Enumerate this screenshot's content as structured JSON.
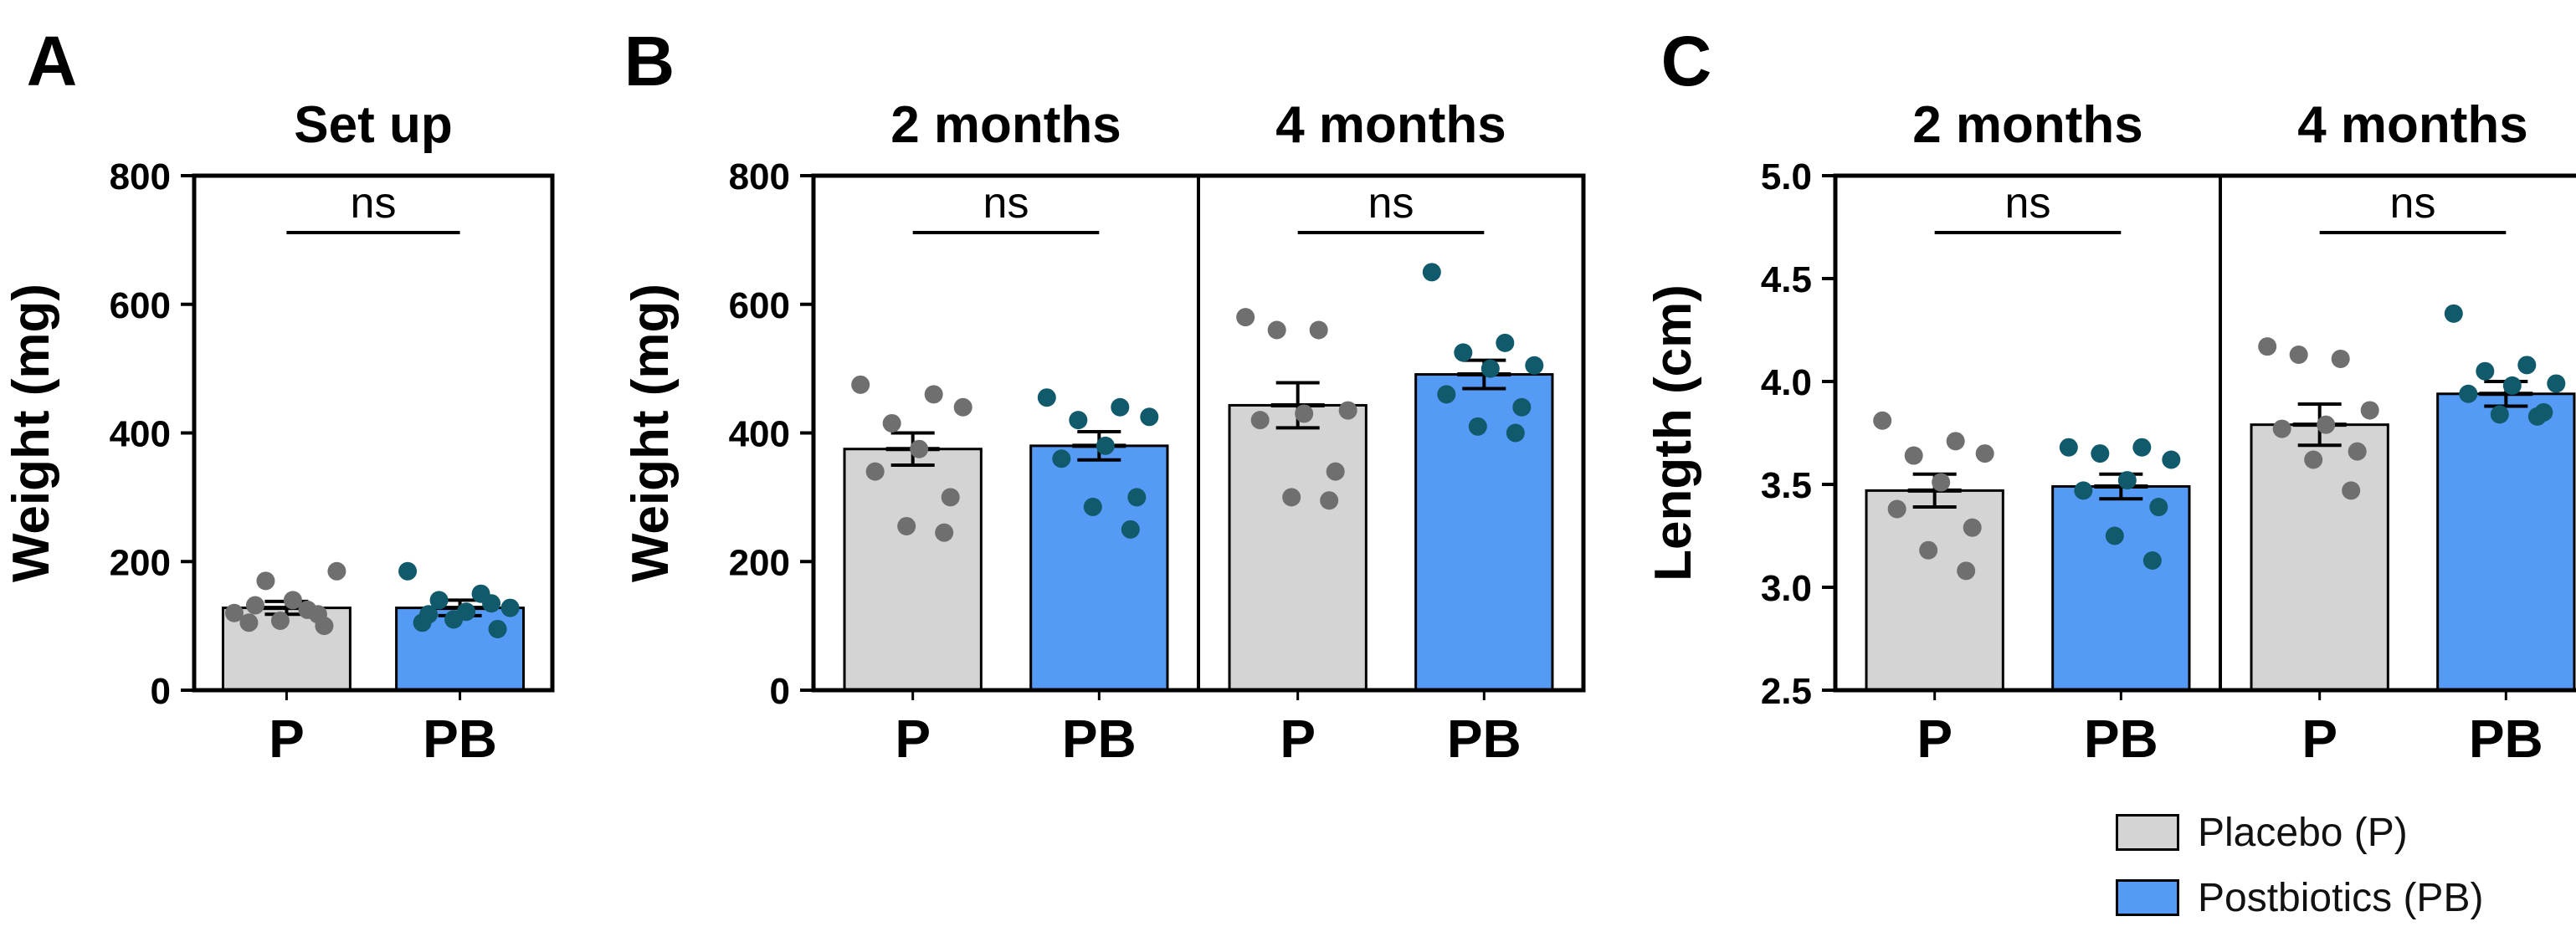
{
  "colors": {
    "placebo_fill": "#d4d4d4",
    "placebo_dot": "#6f6f6f",
    "postbiotic_fill": "#559bf5",
    "postbiotic_dot": "#105a6c",
    "axis": "#000000"
  },
  "legend": [
    {
      "label": "Placebo (P)",
      "color": "#d4d4d4"
    },
    {
      "label": "Postbiotics (PB)",
      "color": "#559bf5"
    }
  ],
  "chart_data": [
    {
      "type": "bar",
      "panel": "A",
      "title": "",
      "ylabel": "Weight (mg)",
      "ylim": [
        0,
        800
      ],
      "yticks": [
        0,
        200,
        400,
        600,
        800
      ],
      "groups": [
        {
          "title": "Set up",
          "categories": [
            "P",
            "PB"
          ],
          "bars": [
            {
              "category": "P",
              "mean": 128,
              "sem": 10,
              "points": [
                120,
                125,
                170,
                185,
                140,
                105,
                100,
                108,
                118,
                132
              ]
            },
            {
              "category": "PB",
              "mean": 128,
              "sem": 12,
              "points": [
                185,
                150,
                140,
                128,
                122,
                105,
                95,
                110,
                135,
                118
              ]
            }
          ],
          "annotation": "ns"
        }
      ]
    },
    {
      "type": "bar",
      "panel": "B",
      "title": "",
      "ylabel": "Weight (mg)",
      "ylim": [
        0,
        800
      ],
      "yticks": [
        0,
        200,
        400,
        600,
        800
      ],
      "groups": [
        {
          "title": "2 months",
          "categories": [
            "P",
            "PB"
          ],
          "bars": [
            {
              "category": "P",
              "mean": 375,
              "sem": 25,
              "points": [
                475,
                460,
                415,
                440,
                375,
                340,
                300,
                255,
                245
              ]
            },
            {
              "category": "PB",
              "mean": 380,
              "sem": 22,
              "points": [
                455,
                440,
                420,
                425,
                380,
                360,
                300,
                285,
                250
              ]
            }
          ],
          "annotation": "ns"
        },
        {
          "title": "4 months",
          "categories": [
            "P",
            "PB"
          ],
          "bars": [
            {
              "category": "P",
              "mean": 443,
              "sem": 35,
              "points": [
                580,
                560,
                560,
                435,
                430,
                420,
                340,
                300,
                295
              ]
            },
            {
              "category": "PB",
              "mean": 491,
              "sem": 22,
              "points": [
                650,
                540,
                525,
                505,
                500,
                460,
                440,
                410,
                400
              ]
            }
          ],
          "annotation": "ns"
        }
      ]
    },
    {
      "type": "bar",
      "panel": "C",
      "title": "",
      "ylabel": "Length (cm)",
      "ylim": [
        2.5,
        5.0
      ],
      "yticks": [
        2.5,
        3.0,
        3.5,
        4.0,
        4.5,
        5.0
      ],
      "groups": [
        {
          "title": "2 months",
          "categories": [
            "P",
            "PB"
          ],
          "bars": [
            {
              "category": "P",
              "mean": 3.47,
              "sem": 0.08,
              "points": [
                3.81,
                3.71,
                3.64,
                3.65,
                3.51,
                3.38,
                3.29,
                3.18,
                3.08
              ]
            },
            {
              "category": "PB",
              "mean": 3.49,
              "sem": 0.06,
              "points": [
                3.68,
                3.68,
                3.65,
                3.62,
                3.52,
                3.47,
                3.39,
                3.25,
                3.13
              ]
            }
          ],
          "annotation": "ns"
        },
        {
          "title": "4 months",
          "categories": [
            "P",
            "PB"
          ],
          "bars": [
            {
              "category": "P",
              "mean": 3.79,
              "sem": 0.1,
              "points": [
                4.17,
                4.11,
                4.13,
                3.86,
                3.79,
                3.77,
                3.66,
                3.62,
                3.47
              ]
            },
            {
              "category": "PB",
              "mean": 3.94,
              "sem": 0.06,
              "points": [
                4.33,
                4.08,
                4.05,
                3.99,
                3.98,
                3.94,
                3.85,
                3.84,
                3.83
              ]
            }
          ],
          "annotation": "ns"
        }
      ]
    }
  ]
}
